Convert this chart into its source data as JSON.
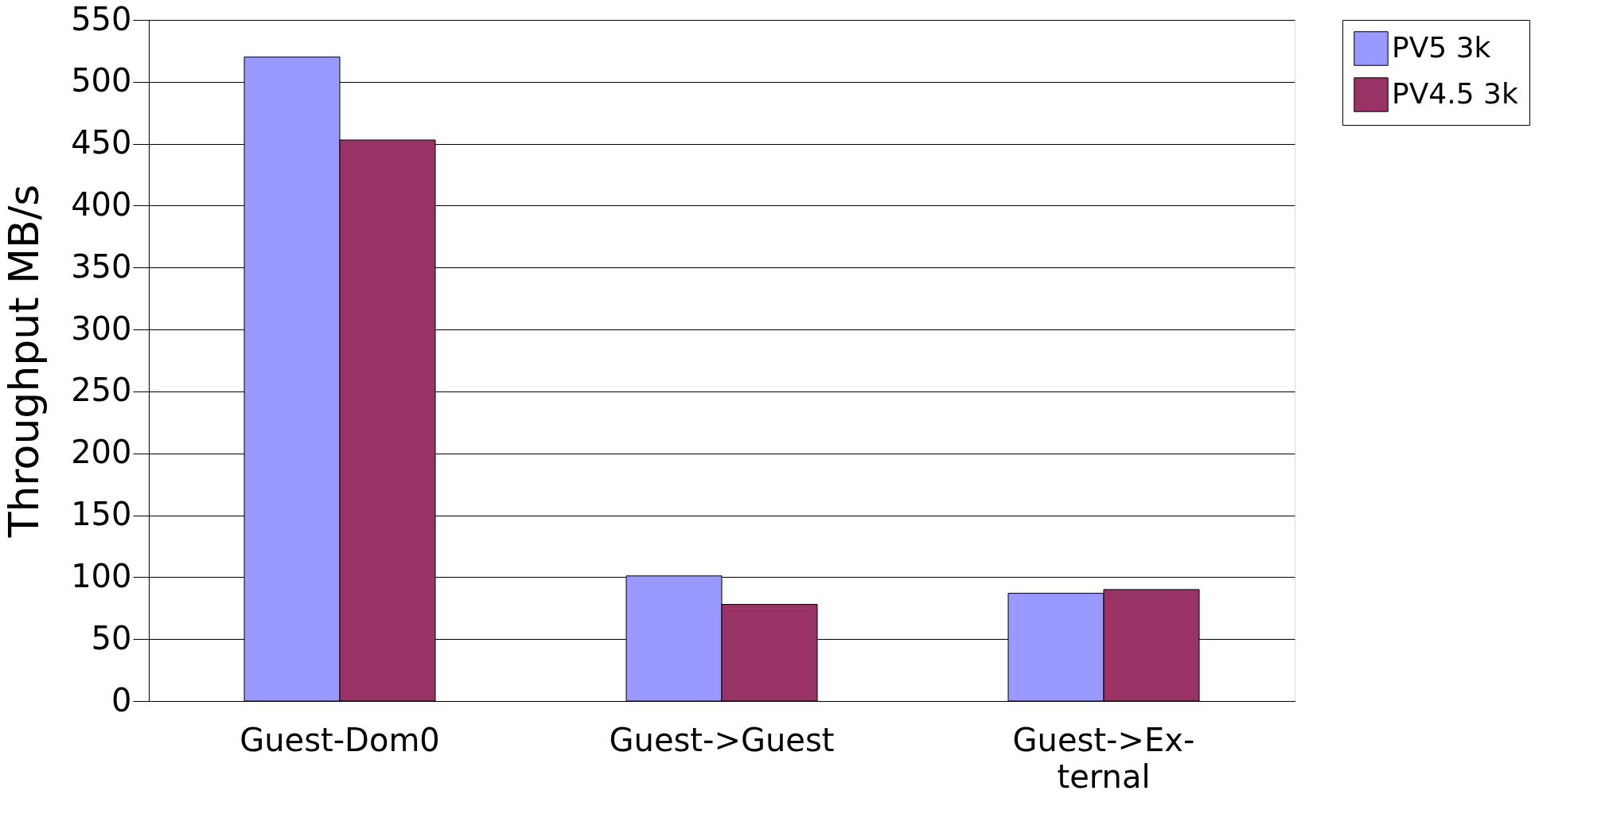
{
  "chart_data": {
    "type": "bar",
    "ylabel": "Throughput MB/s",
    "categories": [
      "Guest-Dom0",
      "Guest->Guest",
      "Guest->Ex-\nternal"
    ],
    "series": [
      {
        "name": "PV5 3k",
        "color": "#9999ff",
        "values": [
          520,
          101,
          87
        ]
      },
      {
        "name": "PV4.5 3k",
        "color": "#993366",
        "values": [
          453,
          78,
          90
        ]
      }
    ],
    "ylim": [
      0,
      550
    ],
    "yticks": [
      0,
      50,
      100,
      150,
      200,
      250,
      300,
      350,
      400,
      450,
      500,
      550
    ],
    "grid": "y",
    "legend": "right"
  }
}
